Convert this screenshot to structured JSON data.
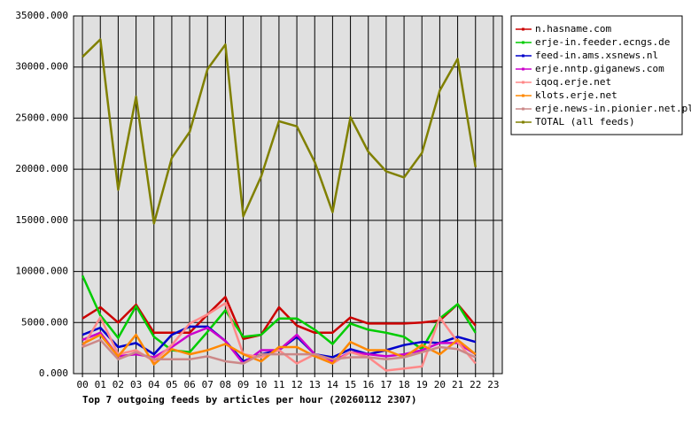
{
  "chart_data": {
    "type": "line",
    "title": "Top 7 outgoing feeds by articles per hour (20260112 2307)",
    "categories": [
      "00",
      "01",
      "02",
      "03",
      "04",
      "05",
      "06",
      "07",
      "08",
      "09",
      "10",
      "11",
      "12",
      "13",
      "14",
      "15",
      "16",
      "17",
      "18",
      "19",
      "20",
      "21",
      "22",
      "23"
    ],
    "ylim": [
      0,
      35000
    ],
    "yticks": [
      {
        "value": 0,
        "label": "0.000"
      },
      {
        "value": 5000,
        "label": "5000.000"
      },
      {
        "value": 10000,
        "label": "10000.000"
      },
      {
        "value": 15000,
        "label": "15000.000"
      },
      {
        "value": 20000,
        "label": "20000.000"
      },
      {
        "value": 25000,
        "label": "25000.000"
      },
      {
        "value": 30000,
        "label": "30000.000"
      },
      {
        "value": 35000,
        "label": "35000.000"
      }
    ],
    "grid": true,
    "legend": "right",
    "series": [
      {
        "name": "n.hasname.com",
        "color": "#cc0000",
        "values": [
          5400,
          6500,
          5000,
          6750,
          4000,
          4000,
          4000,
          5800,
          7500,
          3400,
          3800,
          6500,
          4700,
          4000,
          4000,
          5500,
          4900,
          4900,
          4900,
          5000,
          5200,
          6800,
          4700,
          null
        ]
      },
      {
        "name": "erje-in.feeder.ecngs.de",
        "color": "#00cc00",
        "values": [
          9600,
          5700,
          3500,
          6600,
          3600,
          2300,
          2100,
          4100,
          6200,
          3600,
          3800,
          5400,
          5400,
          4300,
          2900,
          4900,
          4300,
          4000,
          3600,
          2400,
          5400,
          6800,
          4000,
          null
        ]
      },
      {
        "name": "feed-in.ams.xsnews.nl",
        "color": "#0000cc",
        "values": [
          3800,
          4500,
          2600,
          3000,
          1900,
          3800,
          4600,
          4600,
          3200,
          1200,
          1900,
          2300,
          3600,
          1900,
          1600,
          2400,
          1900,
          2300,
          2800,
          3100,
          3000,
          3600,
          3100,
          null
        ]
      },
      {
        "name": "erje.nntp.giganews.com",
        "color": "#cc00cc",
        "values": [
          3300,
          4000,
          1700,
          1900,
          1600,
          2600,
          3800,
          4500,
          3200,
          1000,
          2300,
          2300,
          3800,
          1900,
          1200,
          2100,
          1900,
          1700,
          1900,
          2300,
          3000,
          3000,
          1900,
          null
        ]
      },
      {
        "name": "iqoq.erje.net",
        "color": "#ff8888",
        "values": [
          2600,
          5500,
          1900,
          2300,
          1200,
          2800,
          4900,
          5800,
          6900,
          1900,
          1600,
          2300,
          1000,
          1900,
          1000,
          2100,
          1600,
          300,
          500,
          700,
          5500,
          3100,
          1000,
          null
        ]
      },
      {
        "name": "klots.erje.net",
        "color": "#ff8800",
        "values": [
          2900,
          3800,
          1700,
          3800,
          900,
          2400,
          1900,
          2300,
          2900,
          1900,
          1200,
          2600,
          2600,
          1700,
          1000,
          3100,
          2300,
          2300,
          1600,
          2800,
          1900,
          3300,
          1900,
          null
        ]
      },
      {
        "name": "erje.news-in.pionier.net.pl",
        "color": "#cc8888",
        "values": [
          2600,
          3300,
          1400,
          2100,
          1400,
          1400,
          1400,
          1700,
          1200,
          1000,
          1900,
          1900,
          1900,
          1900,
          1400,
          1600,
          1600,
          1400,
          1600,
          2100,
          2600,
          2400,
          1600,
          null
        ]
      },
      {
        "name": "TOTAL (all feeds)",
        "color": "#808000",
        "values": [
          31000,
          32700,
          18000,
          27100,
          14700,
          21100,
          23650,
          29800,
          32200,
          15400,
          19300,
          24700,
          24200,
          20700,
          15800,
          25100,
          21700,
          19800,
          19200,
          21600,
          27700,
          30800,
          20200,
          null
        ]
      }
    ]
  }
}
